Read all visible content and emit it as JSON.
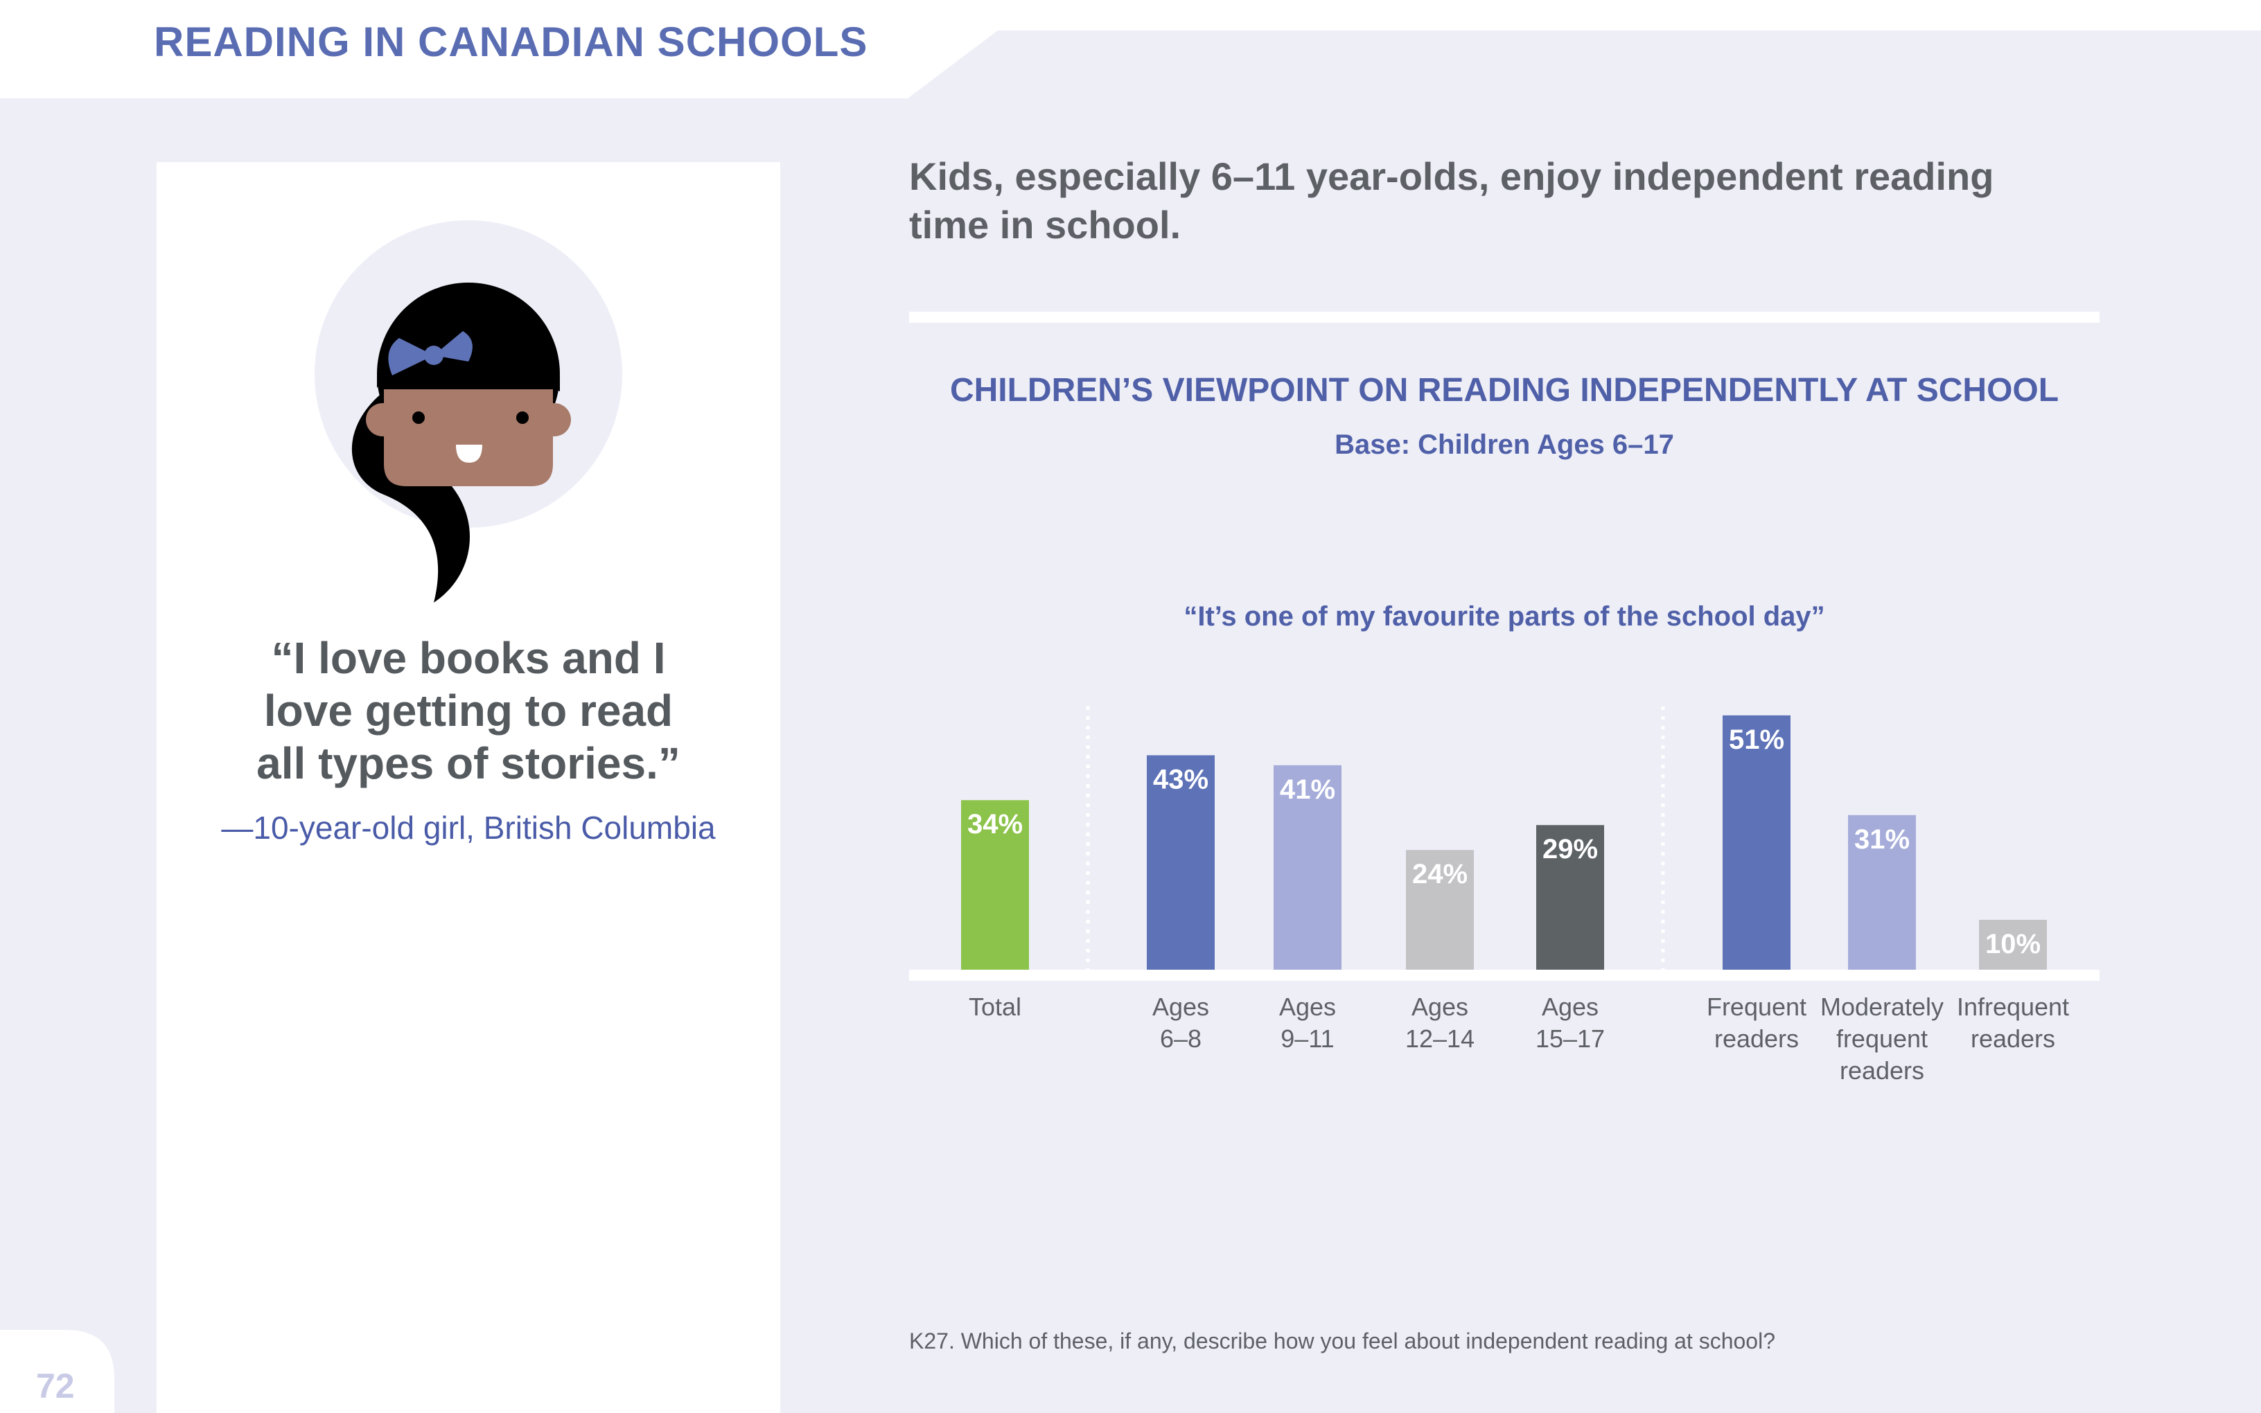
{
  "header": {
    "title": "READING IN CANADIAN SCHOOLS"
  },
  "page_number": "72",
  "quote": {
    "lines": [
      "“I love books and I",
      "love getting to read",
      "all types of stories.”"
    ],
    "attribution": "—10-year-old girl, British Columbia"
  },
  "headline": {
    "lines": [
      "Kids, especially 6–11 year-olds, enjoy independent reading",
      "time in school."
    ]
  },
  "chart_data": {
    "type": "bar",
    "title": "CHILDREN’S VIEWPOINT ON READING INDEPENDENTLY AT SCHOOL",
    "subtitle": "Base: Children Ages 6–17",
    "caption": "“It’s one of my favourite parts of the school day”",
    "ylim": [
      0,
      60
    ],
    "grid": false,
    "value_suffix": "%",
    "bars": [
      {
        "category": "Total",
        "label_lines": [
          "Total"
        ],
        "value": 34,
        "color": "#8cc34a"
      },
      {
        "category": "Ages 6–8",
        "label_lines": [
          "Ages",
          "6–8"
        ],
        "value": 43,
        "color": "#5e72b7"
      },
      {
        "category": "Ages 9–11",
        "label_lines": [
          "Ages",
          "9–11"
        ],
        "value": 41,
        "color": "#a5acd9"
      },
      {
        "category": "Ages 12–14",
        "label_lines": [
          "Ages",
          "12–14"
        ],
        "value": 24,
        "color": "#c3c2c5"
      },
      {
        "category": "Ages 15–17",
        "label_lines": [
          "Ages",
          "15–17"
        ],
        "value": 29,
        "color": "#5d6265"
      },
      {
        "category": "Frequent readers",
        "label_lines": [
          "Frequent",
          "readers"
        ],
        "value": 51,
        "color": "#5e72b7"
      },
      {
        "category": "Moderately frequent readers",
        "label_lines": [
          "Moderately",
          "frequent",
          "readers"
        ],
        "value": 31,
        "color": "#a5acd9"
      },
      {
        "category": "Infrequent readers",
        "label_lines": [
          "Infrequent",
          "readers"
        ],
        "value": 10,
        "color": "#c3c2c5"
      }
    ],
    "groups": [
      [
        "Total"
      ],
      [
        "Ages 6–8",
        "Ages 9–11",
        "Ages 12–14",
        "Ages 15–17"
      ],
      [
        "Frequent readers",
        "Moderately frequent readers",
        "Infrequent readers"
      ]
    ]
  },
  "footnote": "K27. Which of these, if any, describe how you feel about independent reading at school?",
  "colors": {
    "background": "#eeeef7",
    "accent_blue": "#5a6db3",
    "text_gray": "#5d6165",
    "skin": "#a87b6a",
    "hair": "#000000",
    "bow": "#5e72b7"
  }
}
